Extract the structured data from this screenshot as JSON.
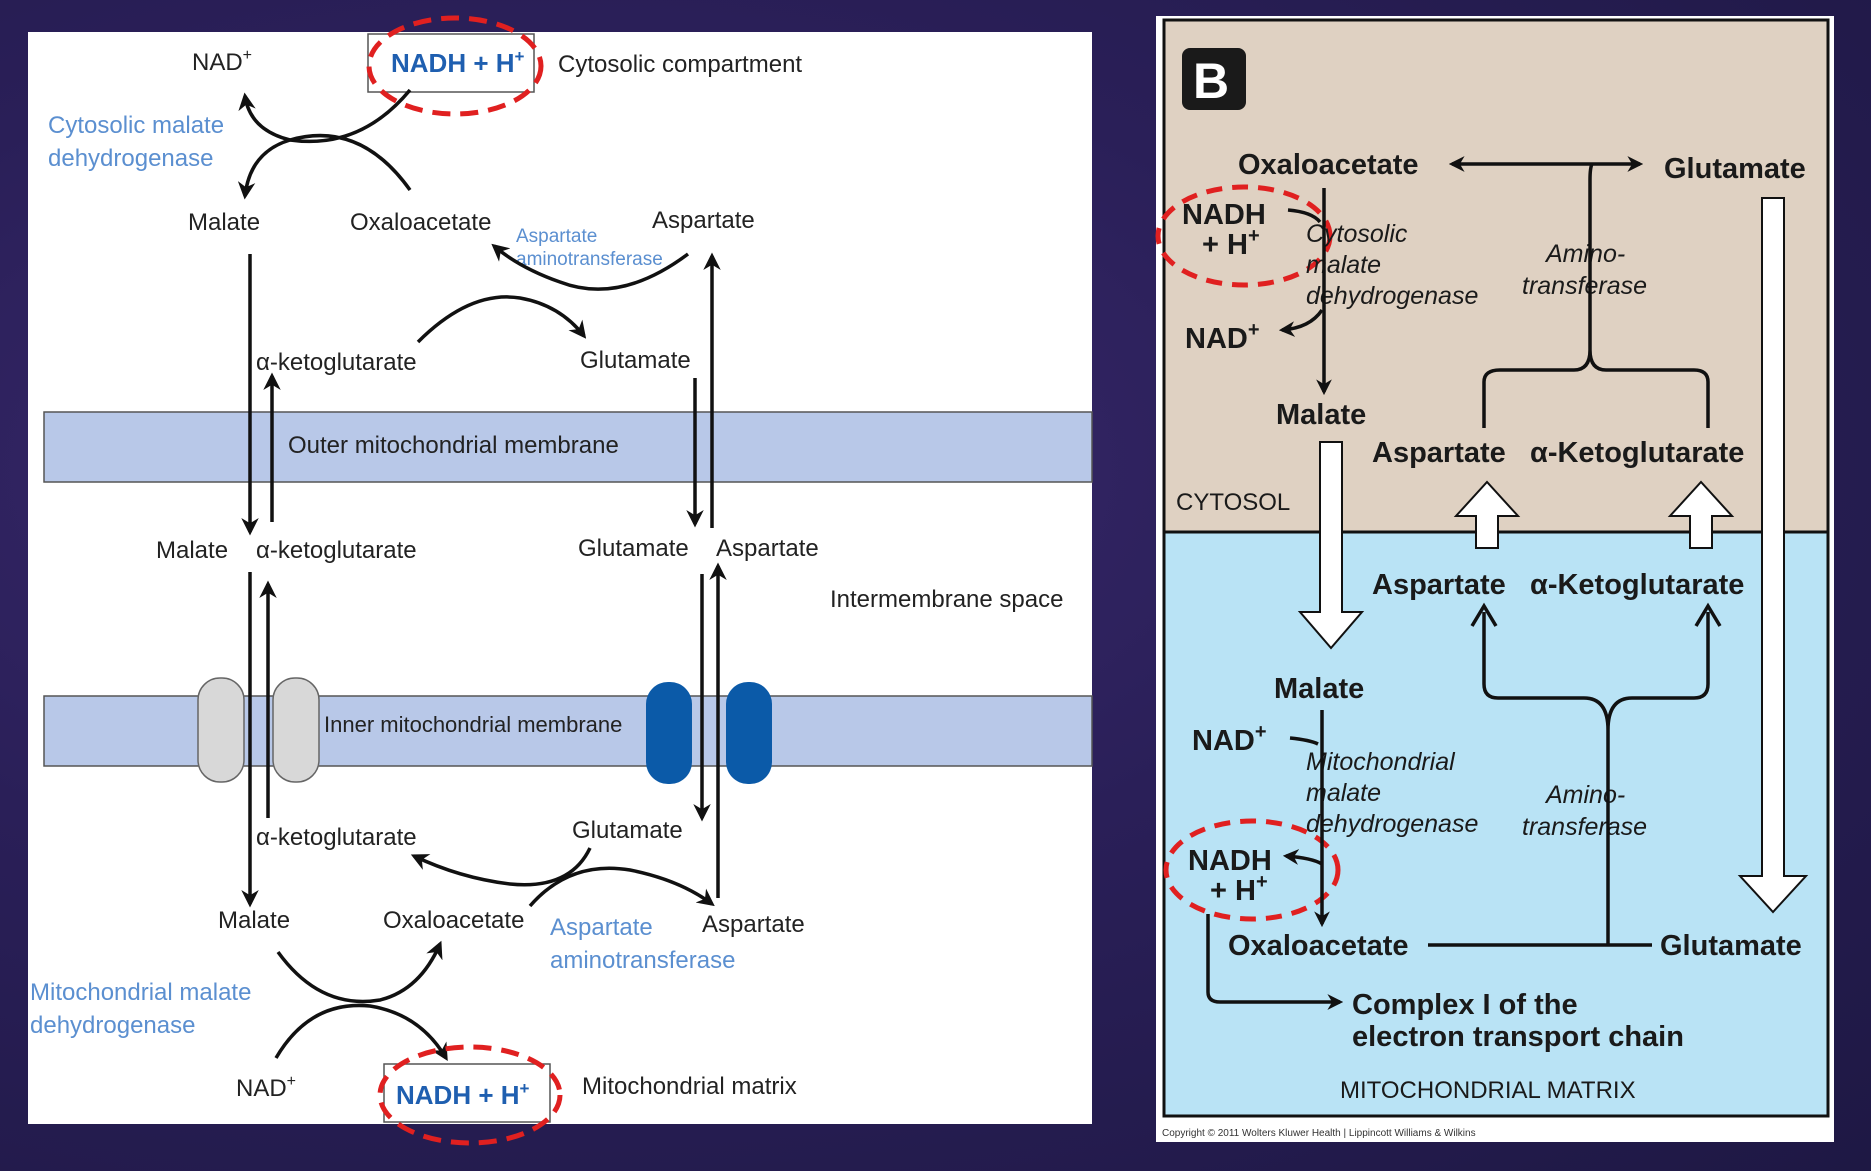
{
  "panel_a": {
    "nad_top": "NAD",
    "nad_sup": "+",
    "nadh_top": "NADH + H",
    "nadh_sup": "+",
    "cytosolic_compartment": "Cytosolic compartment",
    "cyto_mdh_line1": "Cytosolic malate",
    "cyto_mdh_line2": "dehydrogenase",
    "malate_top": "Malate",
    "oaa_top": "Oxaloacetate",
    "ast_small_line1": "Aspartate",
    "ast_small_line2": "aminotransferase",
    "aspartate_top": "Aspartate",
    "akg_top": "α-ketoglutarate",
    "glutamate_top": "Glutamate",
    "outer_membrane": "Outer mitochondrial membrane",
    "malate_mid": "Malate",
    "akg_mid": "α-ketoglutarate",
    "glutamate_mid": "Glutamate",
    "aspartate_mid": "Aspartate",
    "intermembrane": "Intermembrane space",
    "inner_membrane": "Inner mitochondrial membrane",
    "akg_low": "α-ketoglutarate",
    "glutamate_low": "Glutamate",
    "malate_low": "Malate",
    "oaa_low": "Oxaloacetate",
    "ast_line1": "Aspartate",
    "ast_line2": "aminotransferase",
    "aspartate_low": "Aspartate",
    "mito_mdh_line1": "Mitochondrial malate",
    "mito_mdh_line2": "dehydrogenase",
    "nad_bottom": "NAD",
    "nad_bottom_sup": "+",
    "nadh_bottom": "NADH + H",
    "nadh_bottom_sup": "+",
    "mito_matrix": "Mitochondrial matrix"
  },
  "panel_b": {
    "badge": "B",
    "oaa_top": "Oxaloacetate",
    "glutamate_top": "Glutamate",
    "nadh_line1": "NADH",
    "nadh_line2": "+ H",
    "nadh_sup": "+",
    "cyto_mdh_line1": "Cytosolic",
    "cyto_mdh_line2": "malate",
    "cyto_mdh_line3": "dehydrogenase",
    "amino_top_line1": "Amino-",
    "amino_top_line2": "transferase",
    "nad_top": "NAD",
    "nad_top_sup": "+",
    "malate_top": "Malate",
    "aspartate_top": "Aspartate",
    "akg_top": "α-Ketoglutarate",
    "cytosol": "CYTOSOL",
    "aspartate_low": "Aspartate",
    "akg_low": "α-Ketoglutarate",
    "malate_low": "Malate",
    "nad_low": "NAD",
    "nad_low_sup": "+",
    "mito_mdh_line1": "Mitochondrial",
    "mito_mdh_line2": "malate",
    "mito_mdh_line3": "dehydrogenase",
    "amino_low_line1": "Amino-",
    "amino_low_line2": "transferase",
    "nadh_low_line1": "NADH",
    "nadh_low_line2": "+ H",
    "nadh_low_sup": "+",
    "oaa_low": "Oxaloacetate",
    "glutamate_low": "Glutamate",
    "complex_line1": "Complex I of the",
    "complex_line2": "electron transport chain",
    "matrix": "MITOCHONDRIAL MATRIX",
    "copyright": "Copyright © 2011 Wolters Kluwer Health | Lippincott Williams & Wilkins"
  },
  "colors": {
    "membrane": "#b8c8e8",
    "highlight_dash": "#e02020",
    "cytosol_bg": "#dfd1c2",
    "matrix_bg": "#b9e3f5",
    "transporter_gray": "#d8d8d8",
    "transporter_blue": "#0b5aa8"
  }
}
